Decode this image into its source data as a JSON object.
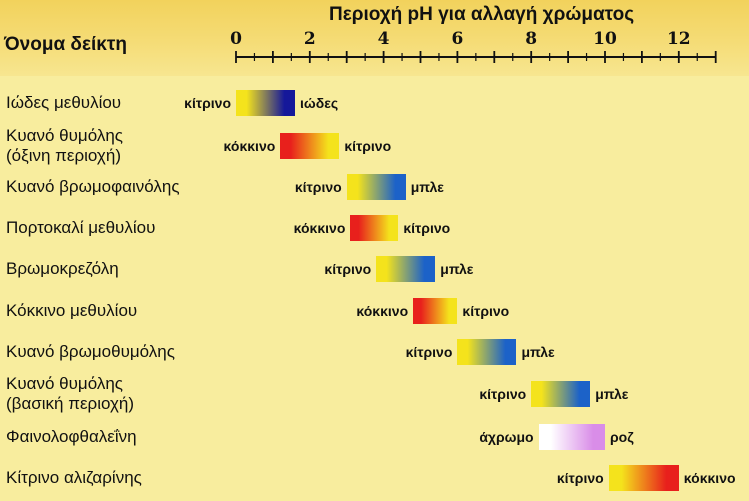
{
  "header": {
    "column_title": "Όνομα δείκτη",
    "axis_title": "Περιοχή pH για αλλαγή χρώματος"
  },
  "axis": {
    "ticks": [
      0,
      2,
      4,
      6,
      8,
      10,
      12
    ],
    "range": [
      0,
      13
    ]
  },
  "indicators": [
    {
      "name": [
        "Ιώδες μεθυλίου"
      ],
      "from": 0.0,
      "to": 1.6,
      "low_label": "κίτρινο",
      "high_label": "ιώδες",
      "low_color": "#f4e31c",
      "high_color": "#15189a"
    },
    {
      "name": [
        "Κυανό θυμόλης",
        "(όξινη περιοχή)"
      ],
      "from": 1.2,
      "to": 2.8,
      "low_label": "κόκκινο",
      "high_label": "κίτρινο",
      "low_color": "#e8201c",
      "high_color": "#f4e31c"
    },
    {
      "name": [
        "Κυανό βρωμοφαινόλης"
      ],
      "from": 3.0,
      "to": 4.6,
      "low_label": "κίτρινο",
      "high_label": "μπλε",
      "low_color": "#f4e31c",
      "high_color": "#1c62c8"
    },
    {
      "name": [
        "Πορτοκαλί μεθυλίου"
      ],
      "from": 3.1,
      "to": 4.4,
      "low_label": "κόκκινο",
      "high_label": "κίτρινο",
      "low_color": "#e8201c",
      "high_color": "#f4e31c"
    },
    {
      "name": [
        "Βρωμοκρεζόλη"
      ],
      "from": 3.8,
      "to": 5.4,
      "low_label": "κίτρινο",
      "high_label": "μπλε",
      "low_color": "#f4e31c",
      "high_color": "#1c62c8"
    },
    {
      "name": [
        "Κόκκινο μεθυλίου"
      ],
      "from": 4.8,
      "to": 6.0,
      "low_label": "κόκκινο",
      "high_label": "κίτρινο",
      "low_color": "#e8201c",
      "high_color": "#f4e31c"
    },
    {
      "name": [
        "Κυανό βρωμοθυμόλης"
      ],
      "from": 6.0,
      "to": 7.6,
      "low_label": "κίτρινο",
      "high_label": "μπλε",
      "low_color": "#f4e31c",
      "high_color": "#1c62c8"
    },
    {
      "name": [
        "Κυανό θυμόλης",
        "(βασική περιοχή)"
      ],
      "from": 8.0,
      "to": 9.6,
      "low_label": "κίτρινο",
      "high_label": "μπλε",
      "low_color": "#f4e31c",
      "high_color": "#1c62c8"
    },
    {
      "name": [
        "Φαινολοφθαλεΐνη"
      ],
      "from": 8.2,
      "to": 10.0,
      "low_label": "άχρωμο",
      "high_label": "ροζ",
      "low_color": "#ffffff",
      "high_color": "#d98de8"
    },
    {
      "name": [
        "Κίτρινο αλιζαρίνης"
      ],
      "from": 10.1,
      "to": 12.0,
      "low_label": "κίτρινο",
      "high_label": "κόκκινο",
      "low_color": "#f4e31c",
      "high_color": "#e8201c"
    }
  ]
}
